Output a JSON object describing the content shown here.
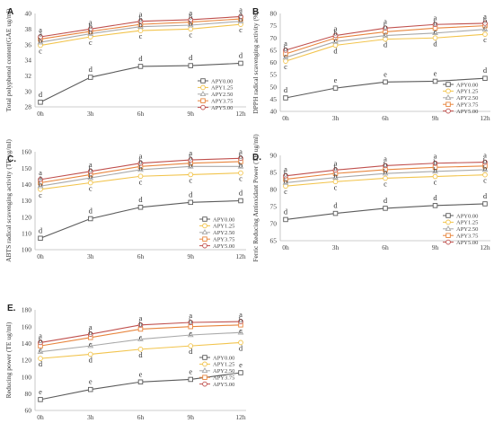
{
  "colors": {
    "APY0.00": "#5b5b5b",
    "APY1.25": "#f2c44d",
    "APY2.50": "#a9a9a9",
    "APY3.75": "#e8853d",
    "APY5.00": "#c0504d"
  },
  "chart_data": [
    {
      "panel": "A",
      "type": "line",
      "ylabel": "Total polyphenol content(GAE ug/ml)",
      "categories": [
        "0h",
        "3h",
        "6h",
        "9h",
        "12h"
      ],
      "ylim": [
        28,
        40
      ],
      "yticks": [
        28,
        30,
        32,
        34,
        36,
        38,
        40
      ],
      "legend_position": "right",
      "series": [
        {
          "name": "APY0.00",
          "values": [
            28.6,
            31.8,
            33.2,
            33.3,
            33.6
          ],
          "letters": [
            "d",
            "d",
            "d",
            "d",
            "d"
          ]
        },
        {
          "name": "APY1.25",
          "values": [
            35.9,
            37.0,
            37.8,
            38.0,
            38.6
          ],
          "letters": [
            "c",
            "c",
            "c",
            "c",
            "c"
          ]
        },
        {
          "name": "APY2.50",
          "values": [
            36.3,
            37.4,
            38.3,
            38.5,
            39.0
          ],
          "letters": [
            "b",
            "b",
            "b",
            "b",
            "b"
          ]
        },
        {
          "name": "APY3.75",
          "values": [
            36.7,
            37.7,
            38.6,
            38.9,
            39.3
          ],
          "letters": [
            "a",
            "b",
            "b",
            "b",
            "a"
          ]
        },
        {
          "name": "APY5.00",
          "values": [
            37.0,
            38.0,
            39.0,
            39.2,
            39.6
          ],
          "letters": [
            "a",
            "a",
            "a",
            "a",
            "a"
          ]
        }
      ]
    },
    {
      "panel": "B",
      "type": "line",
      "ylabel": "DPPH radical scavenging activity (%)",
      "categories": [
        "0h",
        "3h",
        "6h",
        "9h",
        "12h"
      ],
      "ylim": [
        40,
        80
      ],
      "yticks": [
        40,
        45,
        50,
        55,
        60,
        65,
        70,
        75,
        80
      ],
      "legend_position": "right",
      "series": [
        {
          "name": "APY0.00",
          "values": [
            45.5,
            49.5,
            52.0,
            52.3,
            53.5
          ],
          "letters": [
            "d",
            "e",
            "e",
            "e",
            "d"
          ]
        },
        {
          "name": "APY1.25",
          "values": [
            60.5,
            67.0,
            69.5,
            70.0,
            71.5
          ],
          "letters": [
            "c",
            "d",
            "d",
            "d",
            "c"
          ]
        },
        {
          "name": "APY2.50",
          "values": [
            62.0,
            68.5,
            71.0,
            72.0,
            73.5
          ],
          "letters": [
            "c",
            "c",
            "c",
            "c",
            "c"
          ]
        },
        {
          "name": "APY3.75",
          "values": [
            63.5,
            70.0,
            72.5,
            74.0,
            75.0
          ],
          "letters": [
            "b",
            "b",
            "b",
            "b",
            "b"
          ]
        },
        {
          "name": "APY5.00",
          "values": [
            65.0,
            71.0,
            74.0,
            75.5,
            76.0
          ],
          "letters": [
            "a",
            "a",
            "a",
            "a",
            "a"
          ]
        }
      ]
    },
    {
      "panel": "C.",
      "type": "line",
      "ylabel": "ABTS radical scavenging activity (TE ug/ml)",
      "categories": [
        "0h",
        "3h",
        "6h",
        "9h",
        "12h"
      ],
      "ylim": [
        100,
        160
      ],
      "yticks": [
        100,
        110,
        120,
        130,
        140,
        150,
        160
      ],
      "legend_position": "right",
      "series": [
        {
          "name": "APY0.00",
          "values": [
            107,
            119,
            126,
            129,
            130
          ],
          "letters": [
            "d",
            "d",
            "d",
            "d",
            "d"
          ]
        },
        {
          "name": "APY1.25",
          "values": [
            137,
            141,
            145,
            146,
            147
          ],
          "letters": [
            "c",
            "c",
            "c",
            "c",
            "c"
          ]
        },
        {
          "name": "APY2.50",
          "values": [
            139,
            144,
            149,
            151,
            151
          ],
          "letters": [
            "b",
            "b",
            "b",
            "b",
            "b"
          ]
        },
        {
          "name": "APY3.75",
          "values": [
            141,
            146,
            151,
            153,
            154
          ],
          "letters": [
            "a",
            "b",
            "b",
            "b",
            "b"
          ]
        },
        {
          "name": "APY5.00",
          "values": [
            143,
            148,
            153,
            155,
            156
          ],
          "letters": [
            "a",
            "a",
            "a",
            "a",
            "a"
          ]
        }
      ]
    },
    {
      "panel": "D.",
      "type": "line",
      "ylabel": "Ferric Reducing Antioxidant Power (TE ug/ml)",
      "categories": [
        "0h",
        "3h",
        "6h",
        "9h",
        "12h"
      ],
      "ylim": [
        65,
        90
      ],
      "yticks": [
        65,
        70,
        75,
        80,
        85,
        90
      ],
      "legend_position": "right",
      "series": [
        {
          "name": "APY0.00",
          "values": [
            71.2,
            73.0,
            74.5,
            75.3,
            75.8
          ],
          "letters": [
            "d",
            "d",
            "d",
            "d",
            "d"
          ]
        },
        {
          "name": "APY1.25",
          "values": [
            81.0,
            82.3,
            83.3,
            83.8,
            84.3
          ],
          "letters": [
            "c",
            "c",
            "c",
            "c",
            "c"
          ]
        },
        {
          "name": "APY2.50",
          "values": [
            82.0,
            83.5,
            84.7,
            85.3,
            85.8
          ],
          "letters": [
            "b",
            "b",
            "b",
            "b",
            "b"
          ]
        },
        {
          "name": "APY3.75",
          "values": [
            83.0,
            84.7,
            85.8,
            86.5,
            86.9
          ],
          "letters": [
            "b",
            "b",
            "b",
            "b",
            "b"
          ]
        },
        {
          "name": "APY5.00",
          "values": [
            84.0,
            85.7,
            87.0,
            87.7,
            88.0
          ],
          "letters": [
            "a",
            "a",
            "a",
            "a",
            "a"
          ]
        }
      ]
    },
    {
      "panel": "E.",
      "type": "line",
      "ylabel": "Reducing power (TE ug/ml)",
      "categories": [
        "0h",
        "3h",
        "6h",
        "9h",
        "12h"
      ],
      "ylim": [
        60,
        180
      ],
      "yticks": [
        60,
        80,
        100,
        120,
        140,
        160,
        180
      ],
      "legend_position": "right",
      "series": [
        {
          "name": "APY0.00",
          "values": [
            73,
            85,
            94,
            97,
            105
          ],
          "letters": [
            "e",
            "e",
            "e",
            "e",
            "e"
          ]
        },
        {
          "name": "APY1.25",
          "values": [
            122,
            127,
            133,
            137,
            141
          ],
          "letters": [
            "d",
            "d",
            "d",
            "d",
            "d"
          ]
        },
        {
          "name": "APY2.50",
          "values": [
            130,
            137,
            145,
            150,
            153
          ],
          "letters": [
            "c",
            "c",
            "c",
            "c",
            "c"
          ]
        },
        {
          "name": "APY3.75",
          "values": [
            137,
            147,
            157,
            160,
            162
          ],
          "letters": [
            "b",
            "b",
            "b",
            "b",
            "b"
          ]
        },
        {
          "name": "APY5.00",
          "values": [
            141,
            151,
            162,
            165,
            166
          ],
          "letters": [
            "a",
            "a",
            "a",
            "a",
            "a"
          ]
        }
      ]
    }
  ]
}
